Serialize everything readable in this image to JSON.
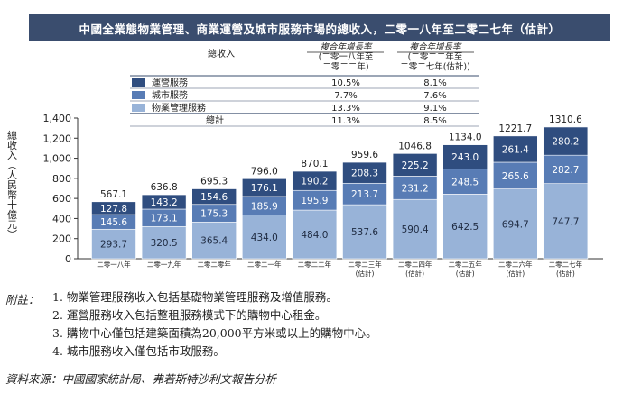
{
  "colors": {
    "title_bg": "#3a4d6e",
    "operational": "#2f4d7f",
    "city": "#587cb5",
    "property": "#98b3d8",
    "table_rule": "#3a4d6e"
  },
  "chart_data": {
    "type": "bar",
    "stacked": true,
    "title": "中國全業態物業管理、商業運營及城市服務市場的總收入，二零一八年至二零二七年（估計）",
    "ylabel": "總收入（人民幣十億元）",
    "ylim": [
      0,
      1400
    ],
    "yticks": [
      "0",
      "200",
      "400",
      "600",
      "800",
      "1,000",
      "1,200",
      "1,400"
    ],
    "grid": false,
    "categories": [
      "二零一八年",
      "二零一九年",
      "二零二零年",
      "二零二一年",
      "二零二二年",
      "二零二三年\n(估計)",
      "二零二四年\n(估計)",
      "二零二五年\n(估計)",
      "二零二六年\n(估計)",
      "二零二七年\n(估計)"
    ],
    "series": [
      {
        "name": "物業管理服務",
        "values": [
          293.7,
          320.5,
          365.4,
          434.0,
          484.0,
          537.6,
          590.4,
          642.5,
          694.7,
          747.7
        ]
      },
      {
        "name": "城市服務",
        "values": [
          145.6,
          173.1,
          175.3,
          185.9,
          195.9,
          213.7,
          231.2,
          248.5,
          265.6,
          282.7
        ]
      },
      {
        "name": "運營服務",
        "values": [
          127.8,
          143.2,
          154.6,
          176.1,
          190.2,
          208.3,
          225.2,
          243.0,
          261.4,
          280.2
        ]
      }
    ],
    "totals": [
      567.1,
      636.8,
      695.3,
      796.0,
      870.1,
      959.6,
      1046.8,
      1134.0,
      1221.7,
      1310.6
    ],
    "legend_table": {
      "header": {
        "label": "總收入",
        "col1": "複合年增長率\n(二零一八年至\n二零二二年)",
        "col2": "複合年增長率\n(二零二二年至\n二零二七年(估計))"
      },
      "rows": [
        {
          "name": "運營服務",
          "c1": "10.5%",
          "c2": "8.1%"
        },
        {
          "name": "城市服務",
          "c1": "7.7%",
          "c2": "7.6%"
        },
        {
          "name": "物業管理服務",
          "c1": "13.3%",
          "c2": "9.1%"
        },
        {
          "name": "總計",
          "c1": "11.3%",
          "c2": "8.5%"
        }
      ]
    }
  },
  "notes": {
    "label": "附註：",
    "items": [
      "1.  物業管理服務收入包括基礎物業管理服務及增值服務。",
      "2.  運營服務收入包括整租服務模式下的購物中心租金。",
      "3.  購物中心僅包括建築面積為20,000平方米或以上的購物中心。",
      "4.  城市服務收入僅包括市政服務。"
    ]
  },
  "source": "資料來源：中國國家統計局、弗若斯特沙利文報告分析"
}
